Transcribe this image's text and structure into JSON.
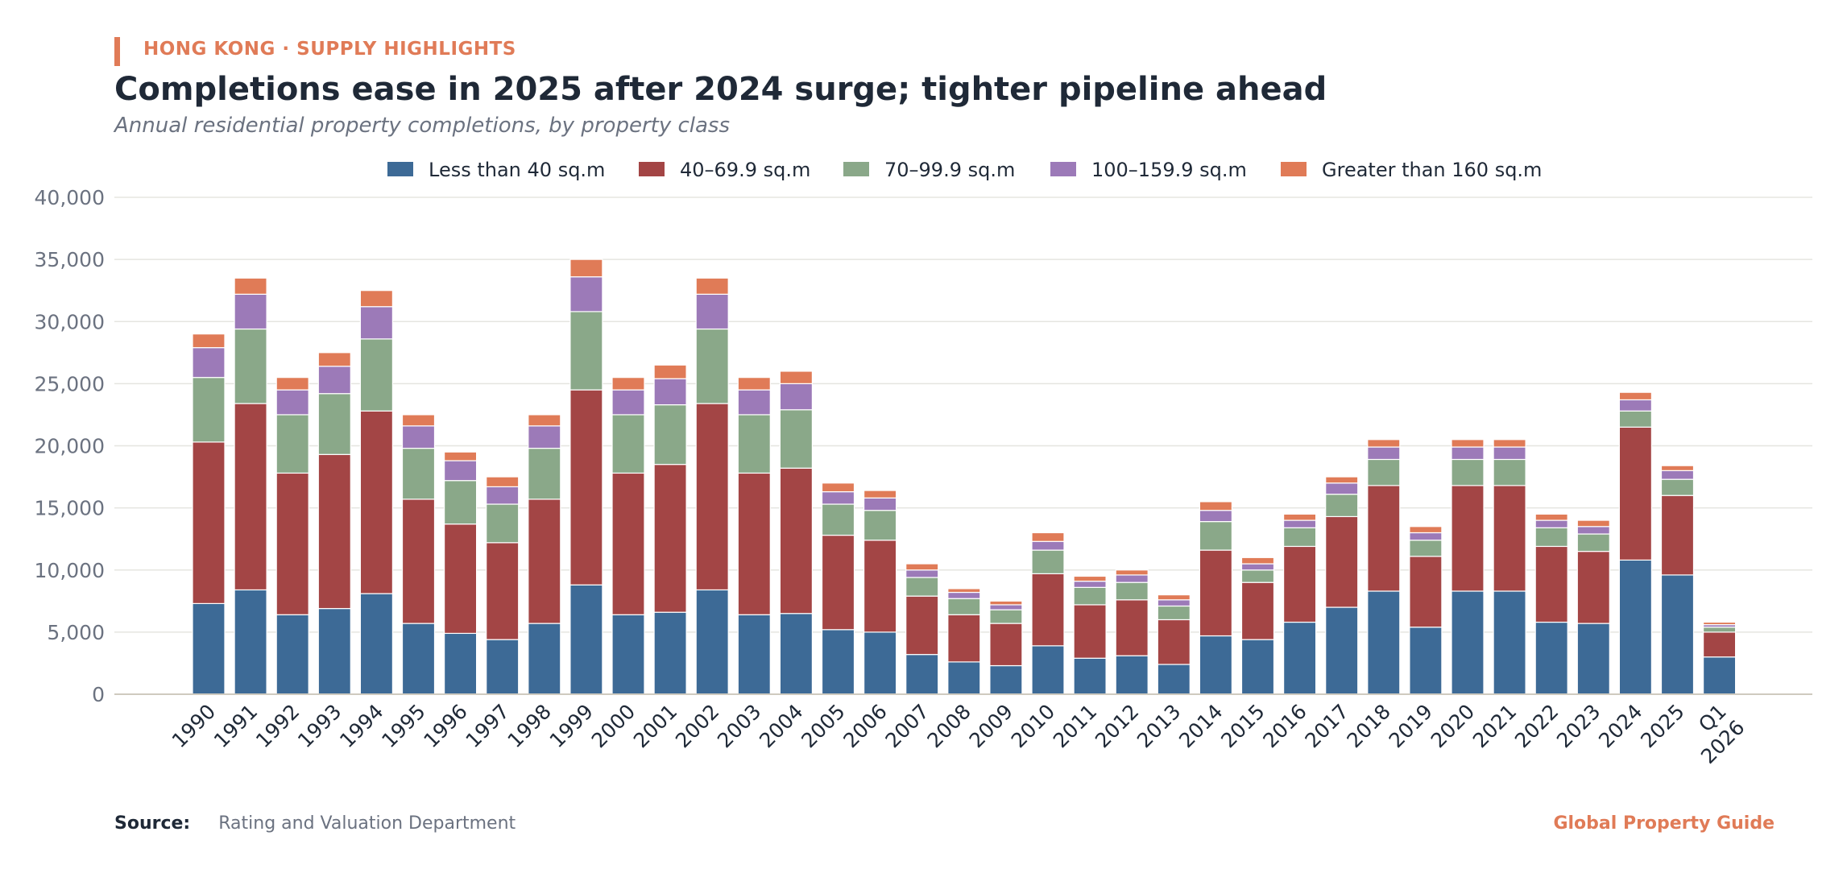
{
  "header": {
    "kicker": "HONG KONG · SUPPLY HIGHLIGHTS",
    "title": "Completions ease in 2025 after 2024 surge; tighter pipeline ahead",
    "subtitle": "Annual residential property completions, by property class"
  },
  "footer": {
    "source_label": "Source:",
    "source_text": "Rating and Valuation Department",
    "brand": "Global Property Guide"
  },
  "colors": {
    "accent": "#e07b57",
    "grid": "#e5e5e0",
    "axis_text": "#6b7280",
    "label_text": "#1f2937"
  },
  "chart_data": {
    "type": "bar",
    "stacked": true,
    "legend_position": "top-center",
    "grid": true,
    "ylim": [
      0,
      40000
    ],
    "yticks": [
      0,
      5000,
      10000,
      15000,
      20000,
      25000,
      30000,
      35000,
      40000
    ],
    "ytick_labels": [
      "0",
      "5,000",
      "10,000",
      "15,000",
      "20,000",
      "25,000",
      "30,000",
      "35,000",
      "40,000"
    ],
    "xlabel": "",
    "ylabel": "",
    "categories": [
      "1990",
      "1991",
      "1992",
      "1993",
      "1994",
      "1995",
      "1996",
      "1997",
      "1998",
      "1999",
      "2000",
      "2001",
      "2002",
      "2003",
      "2004",
      "2005",
      "2006",
      "2007",
      "2008",
      "2009",
      "2010",
      "2011",
      "2012",
      "2013",
      "2014",
      "2015",
      "2016",
      "2017",
      "2018",
      "2019",
      "2020",
      "2021",
      "2022",
      "2023",
      "2024",
      "2025",
      "Q1 2026"
    ],
    "series": [
      {
        "name": "Less than 40 sq.m",
        "color": "#3d6a96",
        "values": [
          7300,
          8400,
          6400,
          6900,
          8100,
          5700,
          4900,
          4400,
          5700,
          8800,
          6400,
          6600,
          8400,
          6400,
          6500,
          5200,
          5000,
          3200,
          2600,
          2300,
          3900,
          2900,
          3100,
          2400,
          4700,
          4400,
          5800,
          7000,
          8300,
          5400,
          8300,
          8300,
          5800,
          5700,
          10800,
          9600,
          3000
        ]
      },
      {
        "name": "40–69.9 sq.m",
        "color": "#a34545",
        "values": [
          13000,
          15000,
          11400,
          12400,
          14700,
          10000,
          8800,
          7800,
          10000,
          15700,
          11400,
          11900,
          15000,
          11400,
          11700,
          7600,
          7400,
          4700,
          3800,
          3400,
          5800,
          4300,
          4500,
          3600,
          6900,
          4600,
          6100,
          7300,
          8500,
          5700,
          8500,
          8500,
          6100,
          5800,
          10700,
          6400,
          2000
        ]
      },
      {
        "name": "70–99.9 sq.m",
        "color": "#8aa889",
        "values": [
          5200,
          6000,
          4700,
          4900,
          5800,
          4100,
          3500,
          3100,
          4100,
          6300,
          4700,
          4800,
          6000,
          4700,
          4700,
          2500,
          2400,
          1500,
          1300,
          1100,
          1900,
          1400,
          1400,
          1100,
          2300,
          1000,
          1500,
          1800,
          2100,
          1300,
          2100,
          2100,
          1500,
          1400,
          1300,
          1300,
          400
        ]
      },
      {
        "name": "100–159.9 sq.m",
        "color": "#9c7ab8",
        "values": [
          2400,
          2800,
          2000,
          2200,
          2600,
          1800,
          1600,
          1400,
          1800,
          2800,
          2000,
          2100,
          2800,
          2000,
          2100,
          1000,
          1000,
          600,
          500,
          400,
          700,
          500,
          600,
          500,
          900,
          500,
          600,
          900,
          1000,
          600,
          1000,
          1000,
          600,
          600,
          900,
          700,
          200
        ]
      },
      {
        "name": "Greater than 160 sq.m",
        "color": "#e07b57",
        "values": [
          1100,
          1300,
          1000,
          1100,
          1300,
          900,
          700,
          800,
          900,
          1400,
          1000,
          1100,
          1300,
          1000,
          1000,
          700,
          600,
          500,
          300,
          300,
          700,
          400,
          400,
          400,
          700,
          500,
          500,
          500,
          600,
          500,
          600,
          600,
          500,
          500,
          600,
          400,
          200
        ]
      }
    ]
  }
}
